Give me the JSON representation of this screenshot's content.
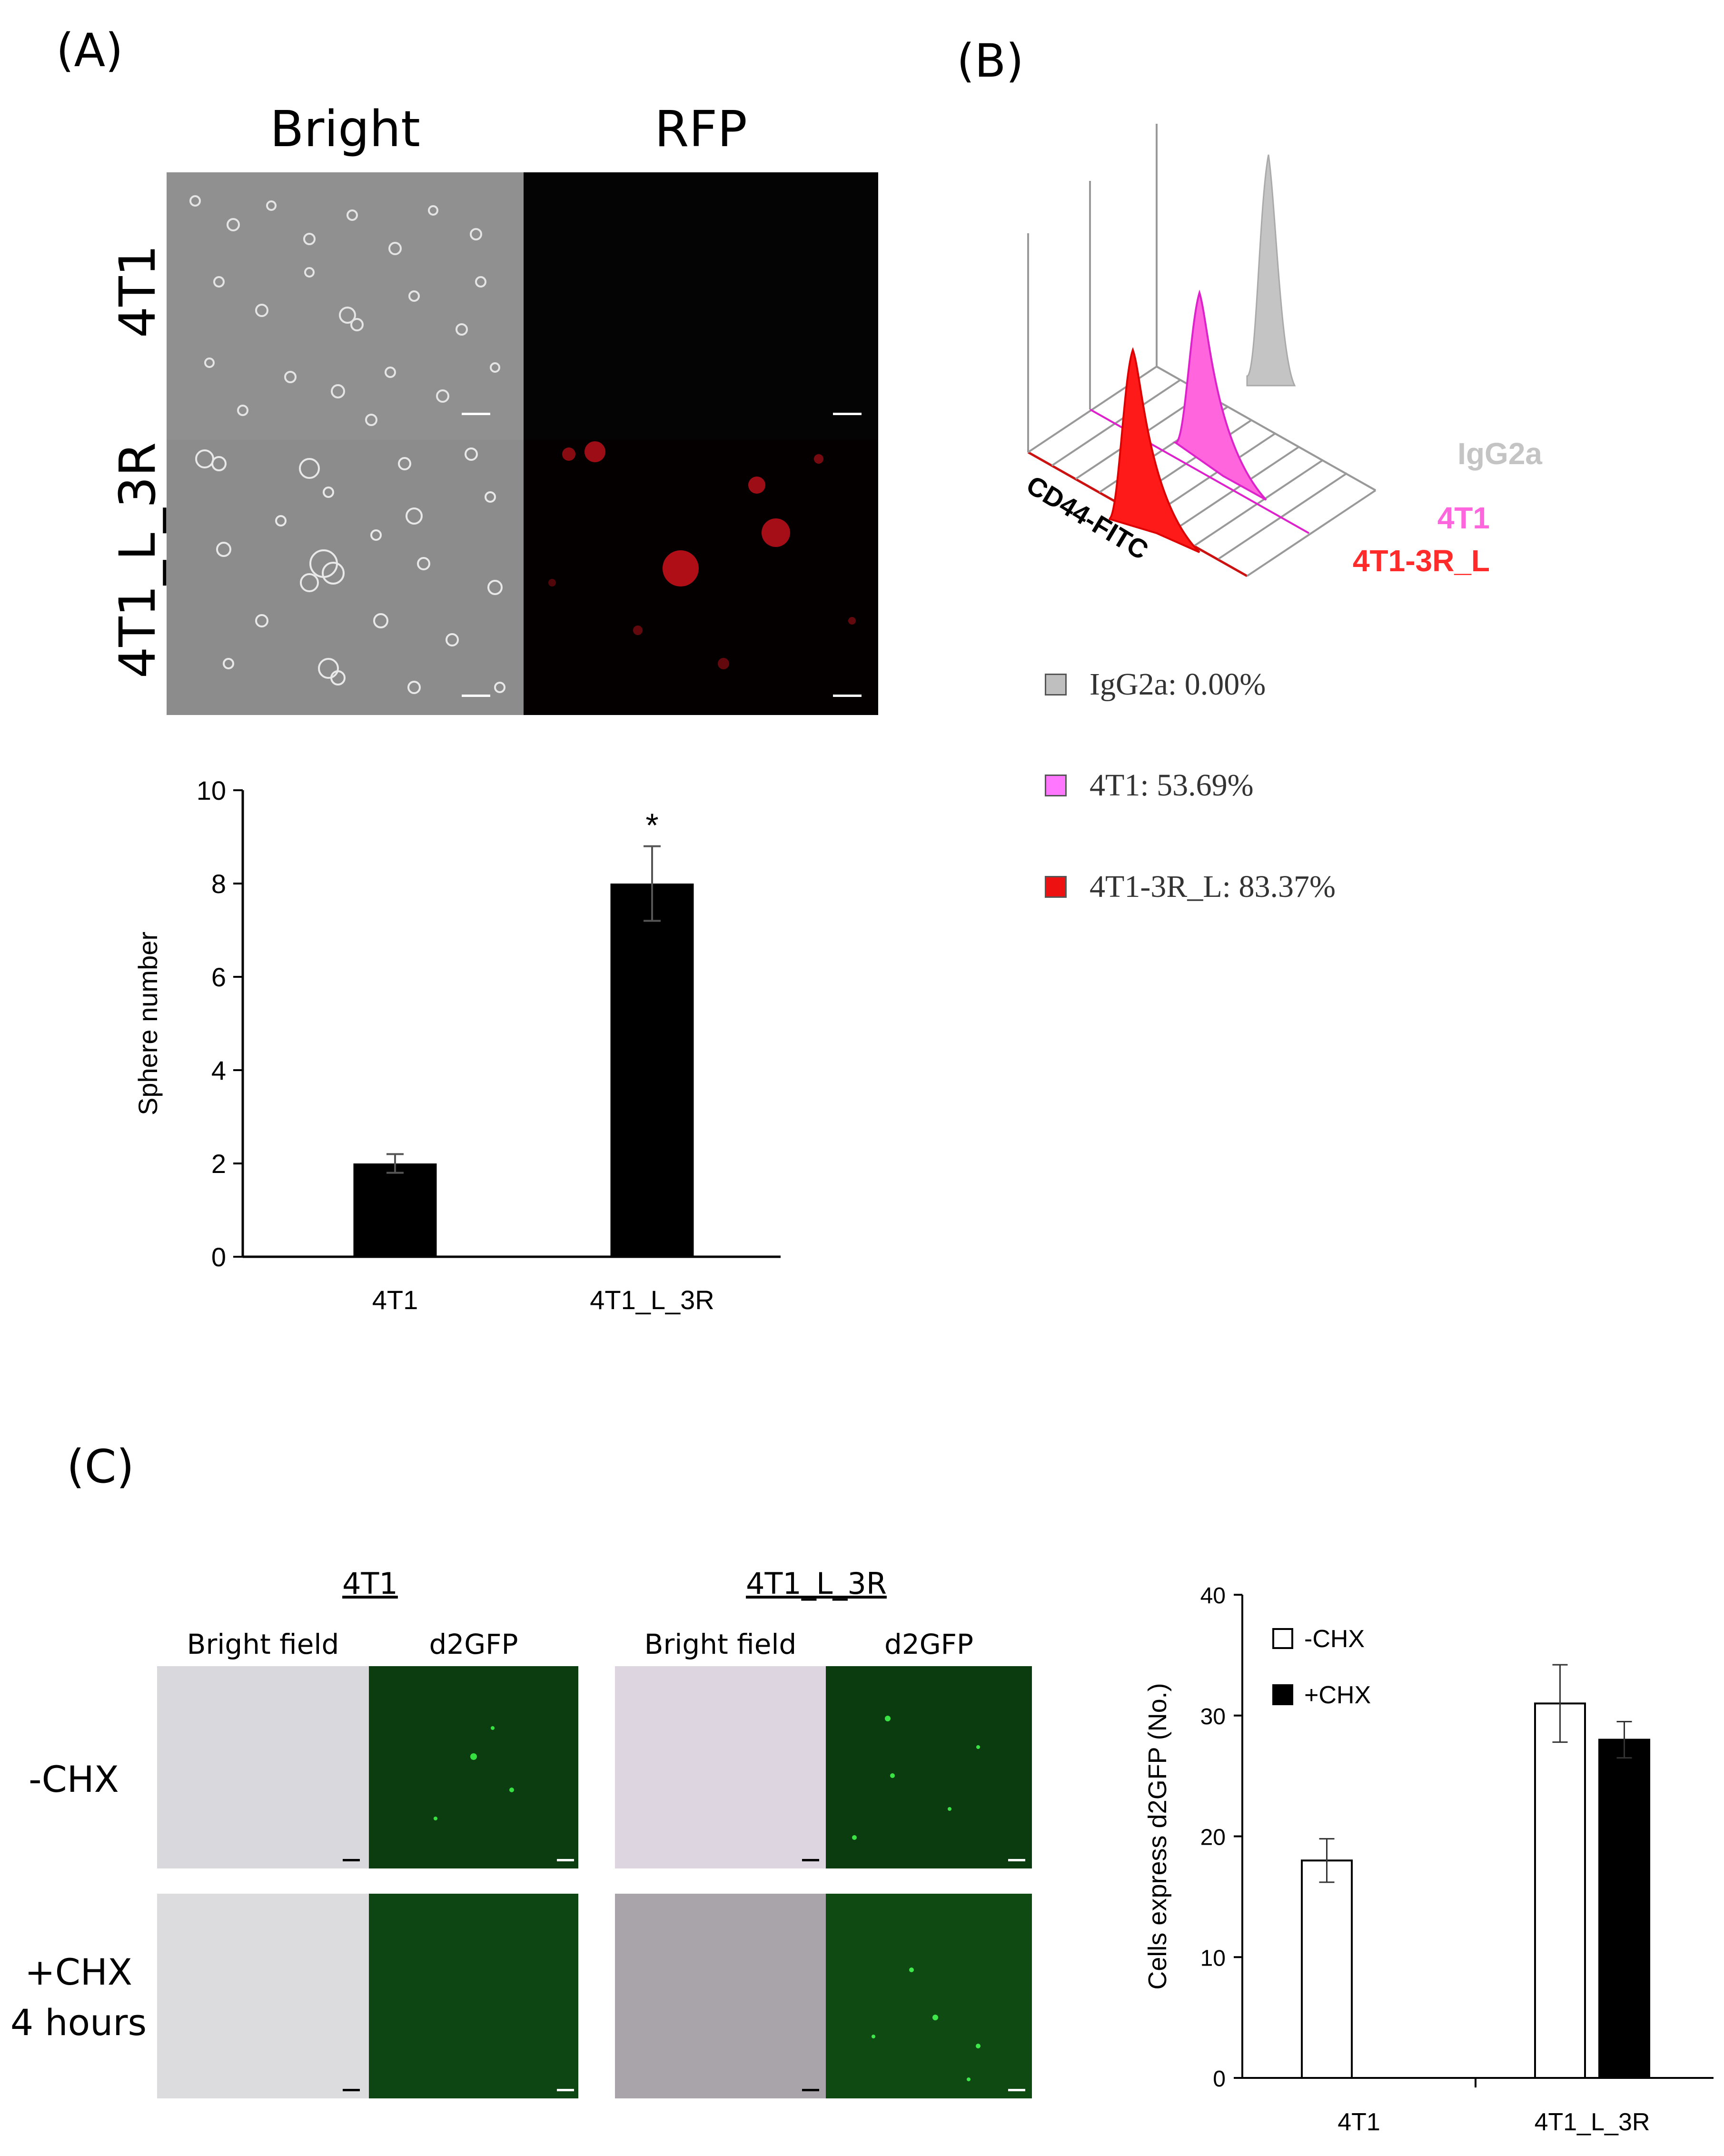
{
  "panel_a": {
    "label": "(A)",
    "columns": [
      "Bright",
      "RFP"
    ],
    "rows": [
      "4T1",
      "4T1_L_3R"
    ]
  },
  "panel_b": {
    "label": "(B)",
    "axis_label": "CD44-FITC",
    "histogram_labels": {
      "igg": "IgG2a",
      "t1": "4T1",
      "t1_3r": "4T1-3R_L"
    },
    "legend": [
      {
        "text": "IgG2a: 0.00%",
        "color": "#bfbfbf"
      },
      {
        "text": "4T1: 53.69%",
        "color": "#ff77ff"
      },
      {
        "text": "4T1-3R_L: 83.37%",
        "color": "#ee1111"
      }
    ],
    "colors": {
      "igg": "#c4c4c4",
      "t1": "#ff66dd",
      "t1_3r": "#ff1a1a"
    }
  },
  "panel_c": {
    "label": "(C)",
    "groups": [
      "4T1",
      "4T1_L_3R"
    ],
    "subcolumns": [
      "Bright field",
      "d2GFP"
    ],
    "rows": [
      "-CHX",
      "+CHX\n4 hours"
    ]
  },
  "chart_data": [
    {
      "type": "bar",
      "categories": [
        "4T1",
        "4T1_L_3R"
      ],
      "values": [
        2.0,
        8.0
      ],
      "errors": [
        0.2,
        0.8
      ],
      "annotations": [
        "",
        "*"
      ],
      "xlabel": "",
      "ylabel": "Sphere number",
      "ylim": [
        0,
        10
      ],
      "yticks": [
        0,
        2,
        4,
        6,
        8,
        10
      ],
      "bar_color": "#000000"
    },
    {
      "type": "bar",
      "categories": [
        "4T1",
        "4T1_L_3R"
      ],
      "series": [
        {
          "name": "-CHX",
          "values": [
            18,
            31
          ],
          "errors": [
            1.8,
            3.2
          ],
          "color": "#ffffff"
        },
        {
          "name": "+CHX",
          "values": [
            null,
            28
          ],
          "errors": [
            null,
            1.5
          ],
          "color": "#000000"
        }
      ],
      "xlabel": "",
      "ylabel": "Cells express d2GFP (No.)",
      "ylim": [
        0,
        40
      ],
      "yticks": [
        0,
        10,
        20,
        30,
        40
      ],
      "legend_position": "top-left"
    }
  ]
}
